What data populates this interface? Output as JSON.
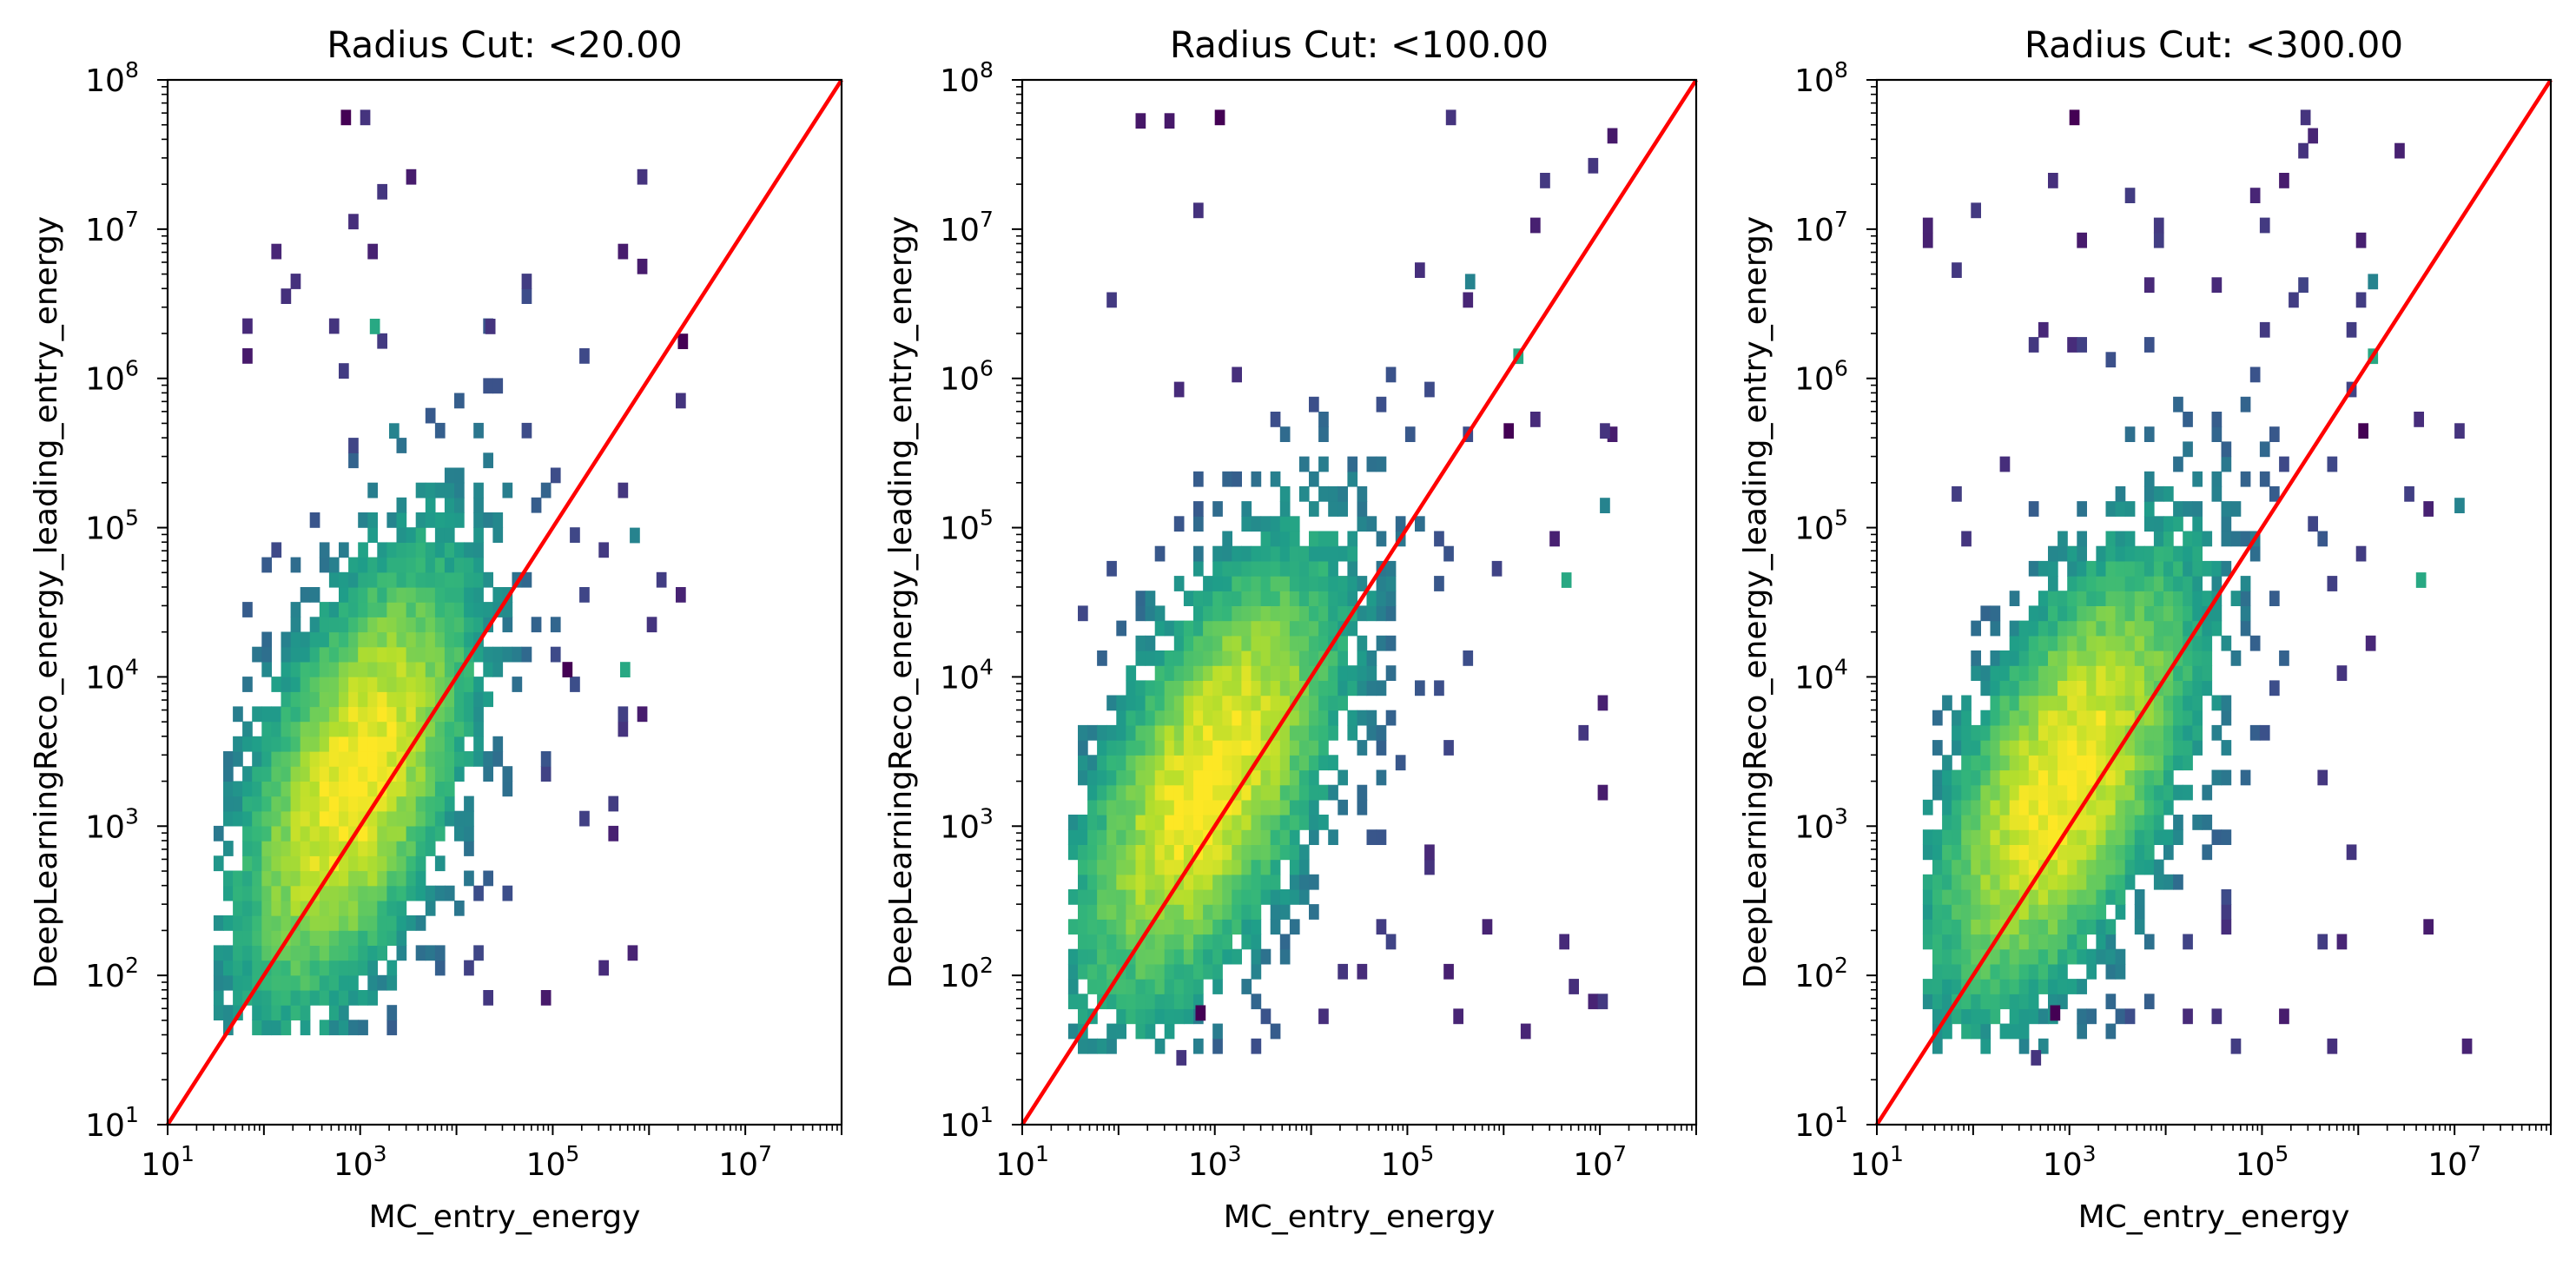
{
  "chart_data": [
    {
      "type": "heatmap",
      "title": "Radius Cut: <20.00",
      "xlabel": "MC_entry_energy",
      "ylabel": "DeepLearningReco_energy_leading_entry_energy",
      "x_scale": "log",
      "y_scale": "log",
      "xlim": [
        10,
        100000000
      ],
      "ylim": [
        10,
        100000000
      ],
      "x_ticks": [
        "10^1",
        "10^3",
        "10^5",
        "10^7"
      ],
      "y_ticks": [
        "10^1",
        "10^2",
        "10^3",
        "10^4",
        "10^5",
        "10^6",
        "10^7",
        "10^8"
      ],
      "reference_line": {
        "type": "y=x",
        "color": "#ff0000"
      },
      "colormap": "viridis",
      "density_peak": {
        "x": 800,
        "y": 1800
      },
      "density_spread_log10": {
        "x": 0.75,
        "y": 0.95,
        "correlation": 0.55
      },
      "value_range": {
        "x": [
          30,
          2000000
        ],
        "y": [
          40,
          60000000
        ]
      },
      "outliers": [
        [
          700,
          60000000
        ],
        [
          1200,
          60000000
        ],
        [
          2000,
          500000
        ],
        [
          1500,
          2000000
        ],
        [
          2000000,
          1800000
        ],
        [
          20000,
          2000000
        ],
        [
          700000,
          90000
        ],
        [
          600000,
          10000
        ],
        [
          150000,
          10000
        ]
      ]
    },
    {
      "type": "heatmap",
      "title": "Radius Cut: <100.00",
      "xlabel": "MC_entry_energy",
      "ylabel": "DeepLearningReco_energy_leading_entry_energy",
      "x_scale": "log",
      "y_scale": "log",
      "xlim": [
        10,
        100000000
      ],
      "ylim": [
        10,
        100000000
      ],
      "x_ticks": [
        "10^1",
        "10^3",
        "10^5",
        "10^7"
      ],
      "y_ticks": [
        "10^1",
        "10^2",
        "10^3",
        "10^4",
        "10^5",
        "10^6",
        "10^7",
        "10^8"
      ],
      "reference_line": {
        "type": "y=x",
        "color": "#ff0000"
      },
      "colormap": "viridis",
      "density_peak": {
        "x": 800,
        "y": 1800
      },
      "density_spread_log10": {
        "x": 0.85,
        "y": 0.95,
        "correlation": 0.6
      },
      "value_range": {
        "x": [
          30,
          12000000
        ],
        "y": [
          30,
          60000000
        ]
      },
      "outliers": [
        [
          1000,
          60000000
        ],
        [
          300000,
          60000000
        ],
        [
          400000,
          5000000
        ],
        [
          1500000,
          1500000
        ],
        [
          1000000,
          450000
        ],
        [
          10000000,
          450000
        ],
        [
          10000000,
          130000
        ],
        [
          4000000,
          45000
        ],
        [
          700,
          60
        ],
        [
          500,
          30
        ]
      ]
    },
    {
      "type": "heatmap",
      "title": "Radius Cut: <300.00",
      "xlabel": "MC_entry_energy",
      "ylabel": "DeepLearningReco_energy_leading_entry_energy",
      "x_scale": "log",
      "y_scale": "log",
      "xlim": [
        10,
        100000000
      ],
      "ylim": [
        10,
        100000000
      ],
      "x_ticks": [
        "10^1",
        "10^3",
        "10^5",
        "10^7"
      ],
      "y_ticks": [
        "10^1",
        "10^2",
        "10^3",
        "10^4",
        "10^5",
        "10^6",
        "10^7",
        "10^8"
      ],
      "reference_line": {
        "type": "y=x",
        "color": "#ff0000"
      },
      "colormap": "viridis",
      "density_peak": {
        "x": 800,
        "y": 1800
      },
      "density_spread_log10": {
        "x": 0.85,
        "y": 0.95,
        "correlation": 0.6
      },
      "value_range": {
        "x": [
          30,
          12000000
        ],
        "y": [
          30,
          60000000
        ]
      },
      "outliers": [
        [
          1000,
          60000000
        ],
        [
          300000,
          60000000
        ],
        [
          1500000,
          5000000
        ],
        [
          1500000,
          1500000
        ],
        [
          1000000,
          450000
        ],
        [
          10000000,
          450000
        ],
        [
          10000000,
          130000
        ],
        [
          4000000,
          45000
        ],
        [
          700,
          60
        ],
        [
          500,
          30
        ]
      ]
    }
  ]
}
